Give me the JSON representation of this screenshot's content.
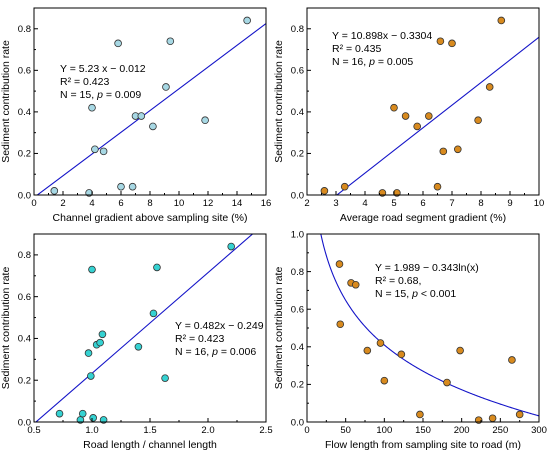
{
  "colors": {
    "fit_line": "#1414c8",
    "axis": "#000000",
    "panel_a_fill": "#a7d8e4",
    "panel_b_fill": "#d88a1e",
    "panel_c_fill": "#35d2d2",
    "panel_d_fill": "#d88a1e",
    "marker_edge": "#333333"
  },
  "chart_data": [
    {
      "type": "scatter",
      "xlabel": "Channel gradient above sampling site (%)",
      "ylabel": "Sediment contribution rate",
      "xlim": [
        0,
        16
      ],
      "ylim": [
        0,
        0.9
      ],
      "xticks": [
        "0",
        "2",
        "4",
        "6",
        "8",
        "10",
        "12",
        "14",
        "16"
      ],
      "yticks": [
        "0.0",
        "0.2",
        "0.4",
        "0.6",
        "0.8"
      ],
      "annotation": [
        "Y = 5.23 x − 0.012",
        "R² = 0.423",
        "N = 15, ",
        "p",
        " = 0.009"
      ],
      "fit": {
        "kind": "linear",
        "slope": 0.0523,
        "intercept": -0.012
      },
      "points": [
        {
          "x": 1.4,
          "y": 0.02
        },
        {
          "x": 3.8,
          "y": 0.01
        },
        {
          "x": 4.0,
          "y": 0.42
        },
        {
          "x": 4.2,
          "y": 0.22
        },
        {
          "x": 4.8,
          "y": 0.21
        },
        {
          "x": 5.8,
          "y": 0.73
        },
        {
          "x": 6.0,
          "y": 0.04
        },
        {
          "x": 6.8,
          "y": 0.04
        },
        {
          "x": 7.0,
          "y": 0.38
        },
        {
          "x": 7.4,
          "y": 0.38
        },
        {
          "x": 8.2,
          "y": 0.33
        },
        {
          "x": 9.1,
          "y": 0.52
        },
        {
          "x": 9.4,
          "y": 0.74
        },
        {
          "x": 11.8,
          "y": 0.36
        },
        {
          "x": 14.7,
          "y": 0.84
        }
      ]
    },
    {
      "type": "scatter",
      "xlabel": "Average road segment gradient (%)",
      "ylabel": "Sediment contribution rate",
      "xlim": [
        2,
        10
      ],
      "ylim": [
        0,
        0.9
      ],
      "xticks": [
        "2",
        "3",
        "4",
        "5",
        "6",
        "7",
        "8",
        "9",
        "10"
      ],
      "yticks": [
        "0.0",
        "0.2",
        "0.4",
        "0.6",
        "0.8"
      ],
      "annotation": [
        "Y = 10.898x − 0.3304",
        "R² = 0.435",
        "N = 16, ",
        "p",
        " = 0.005"
      ],
      "fit": {
        "kind": "linear",
        "slope": 0.10898,
        "intercept": -0.3304
      },
      "points": [
        {
          "x": 2.6,
          "y": 0.02
        },
        {
          "x": 3.3,
          "y": 0.04
        },
        {
          "x": 4.6,
          "y": 0.01
        },
        {
          "x": 5.0,
          "y": 0.42
        },
        {
          "x": 5.1,
          "y": 0.01
        },
        {
          "x": 5.4,
          "y": 0.38
        },
        {
          "x": 5.8,
          "y": 0.33
        },
        {
          "x": 6.2,
          "y": 0.38
        },
        {
          "x": 6.5,
          "y": 0.04
        },
        {
          "x": 6.6,
          "y": 0.74
        },
        {
          "x": 6.7,
          "y": 0.21
        },
        {
          "x": 7.0,
          "y": 0.73
        },
        {
          "x": 7.2,
          "y": 0.22
        },
        {
          "x": 7.9,
          "y": 0.36
        },
        {
          "x": 8.3,
          "y": 0.52
        },
        {
          "x": 8.7,
          "y": 0.84
        }
      ]
    },
    {
      "type": "scatter",
      "xlabel": "Road length / channel length",
      "ylabel": "Sediment contribution rate",
      "xlim": [
        0.5,
        2.5
      ],
      "ylim": [
        0,
        0.9
      ],
      "xticks": [
        "0.5",
        "1.0",
        "1.5",
        "2.0",
        "2.5"
      ],
      "yticks": [
        "0.0",
        "0.2",
        "0.4",
        "0.6",
        "0.8"
      ],
      "annotation": [
        "Y = 0.482x − 0.249",
        "R² = 0.423",
        "N = 16, ",
        "p",
        " = 0.006"
      ],
      "fit": {
        "kind": "linear",
        "slope": 0.482,
        "intercept": -0.249
      },
      "points": [
        {
          "x": 0.72,
          "y": 0.04
        },
        {
          "x": 0.9,
          "y": 0.01
        },
        {
          "x": 0.92,
          "y": 0.04
        },
        {
          "x": 0.97,
          "y": 0.33
        },
        {
          "x": 0.99,
          "y": 0.22
        },
        {
          "x": 1.0,
          "y": 0.73
        },
        {
          "x": 1.01,
          "y": 0.02
        },
        {
          "x": 1.04,
          "y": 0.37
        },
        {
          "x": 1.07,
          "y": 0.38
        },
        {
          "x": 1.09,
          "y": 0.42
        },
        {
          "x": 1.1,
          "y": 0.01
        },
        {
          "x": 1.4,
          "y": 0.36
        },
        {
          "x": 1.53,
          "y": 0.52
        },
        {
          "x": 1.56,
          "y": 0.74
        },
        {
          "x": 1.63,
          "y": 0.21
        },
        {
          "x": 2.2,
          "y": 0.84
        }
      ]
    },
    {
      "type": "scatter",
      "xlabel": "Flow length from sampling site to road (m)",
      "ylabel": "Sediment contribution rate",
      "xlim": [
        0,
        300
      ],
      "ylim": [
        0,
        1
      ],
      "xticks": [
        "0",
        "50",
        "100",
        "150",
        "200",
        "250",
        "300"
      ],
      "yticks": [
        "0.0",
        "0.2",
        "0.4",
        "0.6",
        "0.8",
        "1.0"
      ],
      "annotation": [
        "Y = 1.989 − 0.343ln(x)",
        "R² = 0.68,",
        "N = 15, ",
        "p",
        " < 0.001"
      ],
      "fit": {
        "kind": "log",
        "a": 1.989,
        "b": -0.343
      },
      "points": [
        {
          "x": 42,
          "y": 0.84
        },
        {
          "x": 43,
          "y": 0.52
        },
        {
          "x": 57,
          "y": 0.74
        },
        {
          "x": 63,
          "y": 0.73
        },
        {
          "x": 78,
          "y": 0.38
        },
        {
          "x": 95,
          "y": 0.42
        },
        {
          "x": 100,
          "y": 0.22
        },
        {
          "x": 122,
          "y": 0.36
        },
        {
          "x": 146,
          "y": 0.04
        },
        {
          "x": 181,
          "y": 0.21
        },
        {
          "x": 198,
          "y": 0.38
        },
        {
          "x": 222,
          "y": 0.01
        },
        {
          "x": 240,
          "y": 0.02
        },
        {
          "x": 265,
          "y": 0.33
        },
        {
          "x": 275,
          "y": 0.04
        }
      ]
    }
  ]
}
